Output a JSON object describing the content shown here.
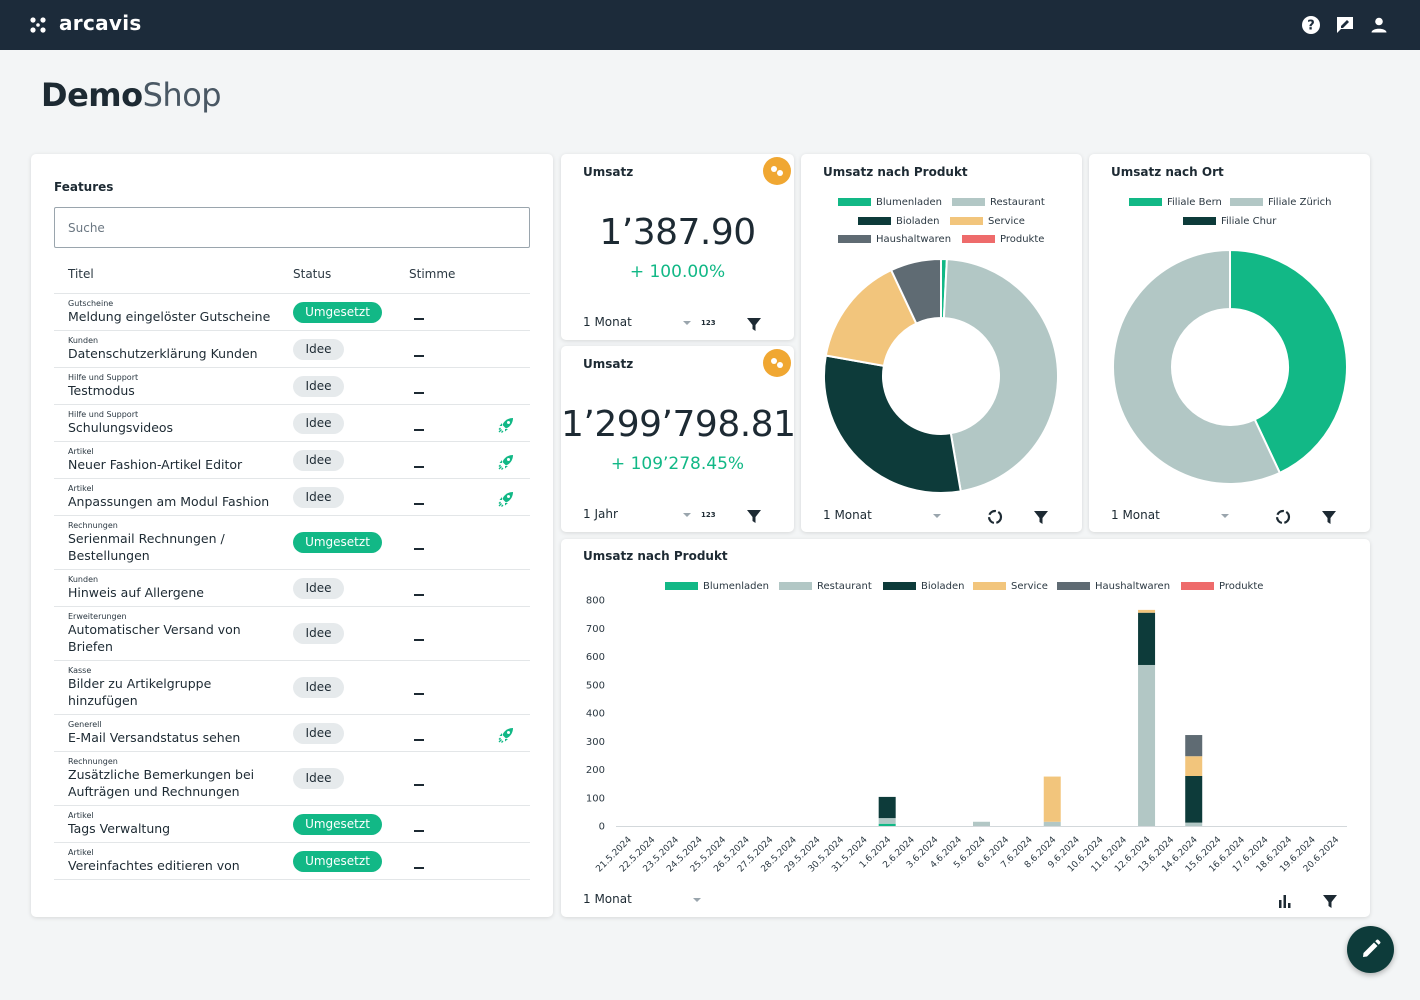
{
  "app": {
    "name": "arcavis"
  },
  "page": {
    "title_bold": "Demo",
    "title_light": "Shop"
  },
  "colors": {
    "green": "#12b886",
    "lightgrey": "#b2c7c5",
    "dark": "#0d3b3a",
    "yellow": "#f2c57c",
    "grey": "#5f6b73",
    "red": "#ee6b6b"
  },
  "features": {
    "title": "Features",
    "search_placeholder": "Suche",
    "columns": [
      "Titel",
      "Status",
      "Stimme"
    ],
    "rows": [
      {
        "category": "Gutscheine",
        "name": "Meldung eingelöster Gutscheine",
        "status": "Umgesetzt",
        "done": true,
        "rocket": false
      },
      {
        "category": "Kunden",
        "name": "Datenschutzerklärung Kunden",
        "status": "Idee",
        "done": false,
        "rocket": false
      },
      {
        "category": "Hilfe und Support",
        "name": "Testmodus",
        "status": "Idee",
        "done": false,
        "rocket": false
      },
      {
        "category": "Hilfe und Support",
        "name": "Schulungsvideos",
        "status": "Idee",
        "done": false,
        "rocket": true
      },
      {
        "category": "Artikel",
        "name": "Neuer Fashion-Artikel Editor",
        "status": "Idee",
        "done": false,
        "rocket": true
      },
      {
        "category": "Artikel",
        "name": "Anpassungen am Modul Fashion",
        "status": "Idee",
        "done": false,
        "rocket": true
      },
      {
        "category": "Rechnungen",
        "name": "Serienmail Rechnungen / Bestellungen",
        "status": "Umgesetzt",
        "done": true,
        "rocket": false
      },
      {
        "category": "Kunden",
        "name": "Hinweis auf Allergene",
        "status": "Idee",
        "done": false,
        "rocket": false
      },
      {
        "category": "Erweiterungen",
        "name": "Automatischer Versand von Briefen",
        "status": "Idee",
        "done": false,
        "rocket": false
      },
      {
        "category": "Kasse",
        "name": "Bilder zu Artikelgruppe hinzufügen",
        "status": "Idee",
        "done": false,
        "rocket": false
      },
      {
        "category": "Generell",
        "name": "E-Mail Versandstatus sehen",
        "status": "Idee",
        "done": false,
        "rocket": true
      },
      {
        "category": "Rechnungen",
        "name": "Zusätzliche Bemerkungen bei Aufträgen und Rechnungen",
        "status": "Idee",
        "done": false,
        "rocket": false
      },
      {
        "category": "Artikel",
        "name": "Tags Verwaltung",
        "status": "Umgesetzt",
        "done": true,
        "rocket": false
      },
      {
        "category": "Artikel",
        "name": "Vereinfachtes editieren von",
        "status": "Umgesetzt",
        "done": true,
        "rocket": false
      }
    ]
  },
  "kpi1": {
    "title": "Umsatz",
    "value": "1’387.90",
    "change": "+ 100.00%",
    "period": "1 Monat",
    "num_icon": "123"
  },
  "kpi2": {
    "title": "Umsatz",
    "value": "1’299’798.81",
    "change": "+ 109’278.45%",
    "period": "1 Jahr",
    "num_icon": "123"
  },
  "chart_data": [
    {
      "type": "pie",
      "title": "Umsatz nach Produkt",
      "legend": [
        "Blumenladen",
        "Restaurant",
        "Bioladen",
        "Service",
        "Haushaltwaren",
        "Produkte"
      ],
      "values": [
        0.8,
        46.5,
        30.5,
        15.2,
        7.0,
        0
      ],
      "period": "1 Monat"
    },
    {
      "type": "pie",
      "title": "Umsatz nach Ort",
      "legend": [
        "Filiale Bern",
        "Filiale Zürich",
        "Filiale Chur"
      ],
      "values": [
        43,
        57,
        0
      ],
      "period": "1 Monat"
    },
    {
      "type": "bar",
      "stacked": true,
      "title": "Umsatz nach Produkt",
      "period": "1 Monat",
      "ylim": [
        0,
        800
      ],
      "yticks": [
        0,
        100,
        200,
        300,
        400,
        500,
        600,
        700,
        800
      ],
      "categories": [
        "21.5.2024",
        "22.5.2024",
        "23.5.2024",
        "24.5.2024",
        "25.5.2024",
        "26.5.2024",
        "27.5.2024",
        "28.5.2024",
        "29.5.2024",
        "30.5.2024",
        "31.5.2024",
        "1.6.2024",
        "2.6.2024",
        "3.6.2024",
        "4.6.2024",
        "5.6.2024",
        "6.6.2024",
        "7.6.2024",
        "8.6.2024",
        "9.6.2024",
        "10.6.2024",
        "11.6.2024",
        "12.6.2024",
        "13.6.2024",
        "14.6.2024",
        "15.6.2024",
        "16.6.2024",
        "17.6.2024",
        "18.6.2024",
        "19.6.2024",
        "20.6.2024"
      ],
      "series": [
        {
          "name": "Blumenladen",
          "values": [
            0,
            0,
            0,
            0,
            0,
            0,
            0,
            0,
            0,
            0,
            0,
            8,
            0,
            0,
            0,
            0,
            0,
            0,
            0,
            0,
            0,
            0,
            0,
            0,
            0,
            0,
            0,
            0,
            0,
            0,
            0
          ]
        },
        {
          "name": "Restaurant",
          "values": [
            0,
            0,
            0,
            0,
            0,
            0,
            0,
            0,
            0,
            0,
            0,
            20,
            0,
            0,
            0,
            15,
            0,
            0,
            15,
            0,
            0,
            0,
            570,
            0,
            12,
            0,
            0,
            0,
            0,
            0,
            0
          ]
        },
        {
          "name": "Bioladen",
          "values": [
            0,
            0,
            0,
            0,
            0,
            0,
            0,
            0,
            0,
            0,
            0,
            75,
            0,
            0,
            0,
            0,
            0,
            0,
            0,
            0,
            0,
            0,
            185,
            0,
            165,
            0,
            0,
            0,
            0,
            0,
            0
          ]
        },
        {
          "name": "Service",
          "values": [
            0,
            0,
            0,
            0,
            0,
            0,
            0,
            0,
            0,
            0,
            0,
            0,
            0,
            0,
            0,
            0,
            0,
            0,
            160,
            0,
            0,
            0,
            10,
            0,
            70,
            0,
            0,
            0,
            0,
            0,
            0
          ]
        },
        {
          "name": "Haushaltwaren",
          "values": [
            0,
            0,
            0,
            0,
            0,
            0,
            0,
            0,
            0,
            0,
            0,
            0,
            0,
            0,
            0,
            0,
            0,
            0,
            0,
            0,
            0,
            0,
            0,
            0,
            75,
            0,
            0,
            0,
            0,
            0,
            0
          ]
        },
        {
          "name": "Produkte",
          "values": [
            0,
            0,
            0,
            0,
            0,
            0,
            0,
            0,
            0,
            0,
            0,
            0,
            0,
            0,
            0,
            0,
            0,
            0,
            0,
            0,
            0,
            0,
            0,
            0,
            0,
            0,
            0,
            0,
            0,
            0,
            0
          ]
        }
      ]
    }
  ]
}
